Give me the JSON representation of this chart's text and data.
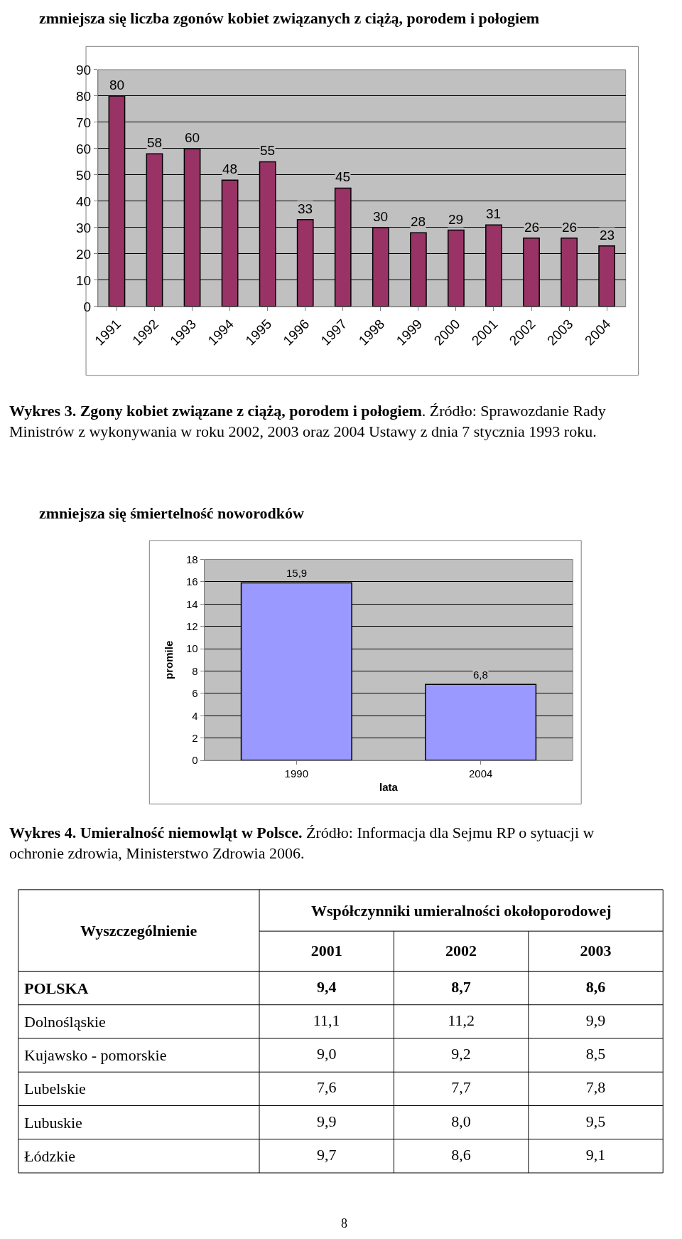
{
  "chart_data": [
    {
      "type": "bar",
      "title": "zmniejsza się liczba zgonów kobiet związanych z ciążą, porodem i połogiem",
      "categories": [
        "1991",
        "1992",
        "1993",
        "1994",
        "1995",
        "1996",
        "1997",
        "1998",
        "1999",
        "2000",
        "2001",
        "2002",
        "2003",
        "2004"
      ],
      "values": [
        80,
        58,
        60,
        48,
        55,
        33,
        45,
        30,
        28,
        29,
        31,
        26,
        26,
        23
      ],
      "color": "#993366",
      "ylim": [
        0,
        90
      ],
      "yticks": [
        0,
        10,
        20,
        30,
        40,
        50,
        60,
        70,
        80,
        90
      ],
      "grid": "y",
      "data_labels": true,
      "annotations": [
        "Wykres 3. Zgony kobiet związane z ciążą, porodem i połogiem",
        ". Źródło: Sprawozdanie Rady Ministrów z wykonywania w roku 2002, 2003 oraz 2004 Ustawy z dnia 7 stycznia 1993 roku."
      ]
    },
    {
      "type": "bar",
      "title": "zmniejsza się śmiertelność noworodków",
      "xlabel": "lata",
      "ylabel": "promile",
      "categories": [
        "1990",
        "2004"
      ],
      "values": [
        15.9,
        6.8
      ],
      "value_labels": [
        "15,9",
        "6,8"
      ],
      "color": "#9999ff",
      "ylim": [
        0,
        18
      ],
      "yticks": [
        0,
        2,
        4,
        6,
        8,
        10,
        12,
        14,
        16,
        18
      ],
      "grid": "y",
      "annotations": [
        "Wykres 4. Umieralność niemowląt w Polsce.",
        " Źródło: Informacja dla Sejmu RP o sytuacji w ochronie zdrowia, Ministerstwo Zdrowia 2006."
      ]
    },
    {
      "type": "other",
      "title": "Współczynniki umieralności okołoporodowej",
      "ylabel": "Wyszczególnienie",
      "categories": [
        "2001",
        "2002",
        "2003"
      ],
      "y_categories": [
        "POLSKA",
        "Dolnośląskie",
        "Kujawsko - pomorskie",
        "Lubelskie",
        "Lubuskie",
        "Łódzkie"
      ],
      "cell_labels": [
        [
          "9,4",
          "8,7",
          "8,6"
        ],
        [
          "11,1",
          "11,2",
          "9,9"
        ],
        [
          "9,0",
          "9,2",
          "8,5"
        ],
        [
          "7,6",
          "7,7",
          "7,8"
        ],
        [
          "9,9",
          "8,0",
          "9,5"
        ],
        [
          "9,7",
          "8,6",
          "9,1"
        ]
      ],
      "annotations": [
        "8"
      ]
    }
  ]
}
